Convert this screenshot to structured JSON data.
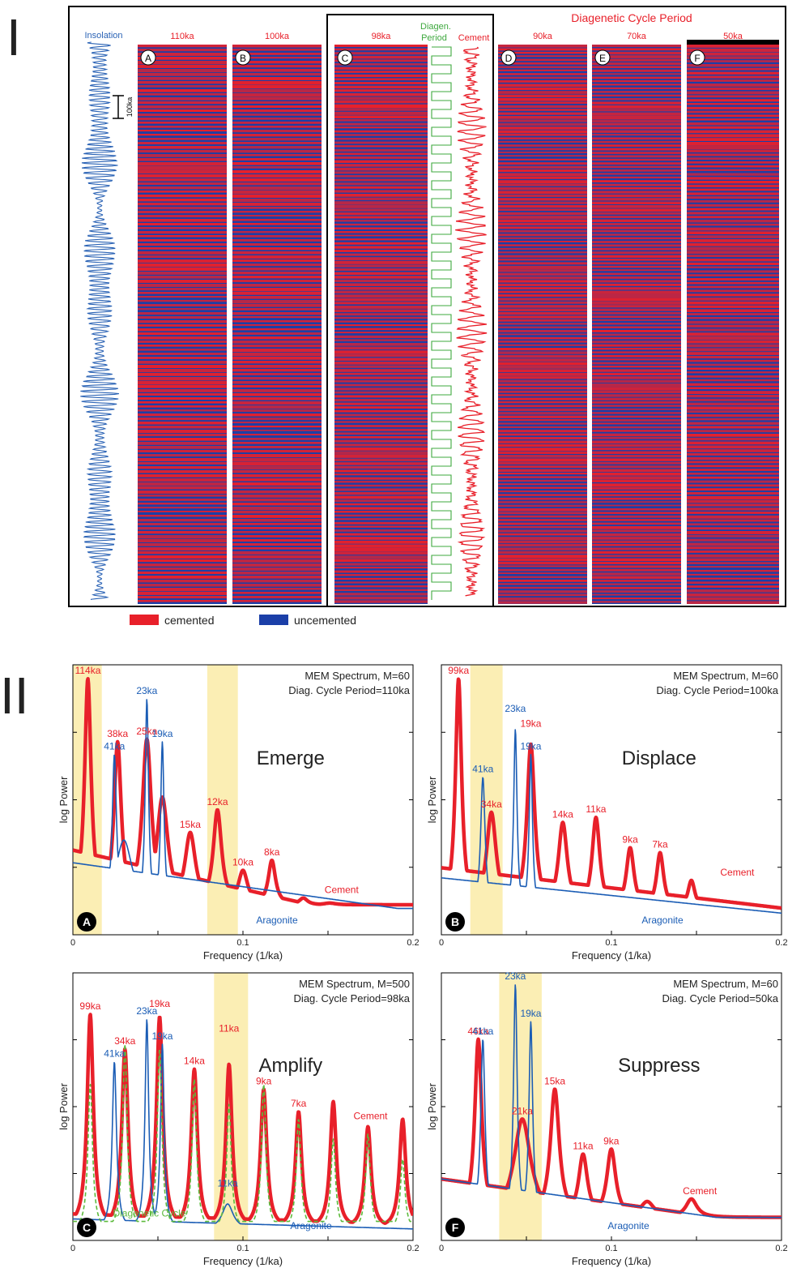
{
  "part_one": {
    "roman": "I",
    "insolation_label": "Insolation",
    "scale_label": "100ka",
    "diagenetic_title": "Diagenetic Cycle Period",
    "diagen_label_1": "Diagen.",
    "diagen_label_2": "Period",
    "cement_label": "Cement",
    "colors": {
      "cemented": "#e8202a",
      "uncemented": "#1b3fa8",
      "insolation": "#2b63b5",
      "diagen": "#3ea83e",
      "title": "#e8202a"
    },
    "columns": [
      {
        "letter": "A",
        "period": "110ka"
      },
      {
        "letter": "B",
        "period": "100ka"
      },
      {
        "letter": "C",
        "period": "98ka"
      },
      {
        "letter": "D",
        "period": "90ka"
      },
      {
        "letter": "E",
        "period": "70ka"
      },
      {
        "letter": "F",
        "period": "50ka"
      }
    ],
    "legend": {
      "cemented": "cemented",
      "uncemented": "uncemented"
    }
  },
  "part_two": {
    "roman": "II"
  },
  "chart_data": [
    {
      "type": "line",
      "panel": "A",
      "title_line1": "MEM Spectrum, M=60",
      "title_line2": "Diag. Cycle Period=110ka",
      "effect": "Emerge",
      "xlabel": "Frequency (1/ka)",
      "ylabel": "log Power",
      "xlim": [
        0,
        0.2
      ],
      "xticks": [
        "0",
        "0.1",
        "0.2"
      ],
      "bands": [
        [
          0.0,
          0.017
        ],
        [
          0.079,
          0.097
        ]
      ],
      "series": [
        {
          "name": "Cement",
          "color": "#e8202a",
          "baseline": 0.31,
          "end": 0.0,
          "peaks": [
            [
              0.0088,
              0.99,
              0.0023
            ],
            [
              0.0263,
              0.74,
              0.0026
            ],
            [
              0.0435,
              0.75,
              0.0033
            ],
            [
              0.0526,
              0.52,
              0.004
            ],
            [
              0.069,
              0.38,
              0.0038
            ],
            [
              0.085,
              0.47,
              0.003
            ],
            [
              0.1,
              0.23,
              0.0034
            ],
            [
              0.117,
              0.27,
              0.0026
            ],
            [
              0.1355,
              0.12,
              0.003
            ],
            [
              0.151,
              0.1,
              0.0045
            ],
            [
              0.172,
              0.08,
              0.006
            ]
          ]
        },
        {
          "name": "Aragonite",
          "color": "#1b5db5",
          "baseline": 0.26,
          "end": 0.07,
          "peaks": [
            [
              0.0244,
              0.69,
              0.0015
            ],
            [
              0.0435,
              0.91,
              0.0012
            ],
            [
              0.0526,
              0.74,
              0.0012
            ],
            [
              0.03,
              0.35,
              0.006
            ]
          ]
        }
      ],
      "labels": [
        {
          "text": "114ka",
          "color": "#e8202a",
          "x": 0.0088,
          "y": 0.99
        },
        {
          "text": "41ka",
          "color": "#1b5db5",
          "x": 0.0244,
          "y": 0.69
        },
        {
          "text": "38ka",
          "color": "#e8202a",
          "x": 0.0263,
          "y": 0.74
        },
        {
          "text": "23ka",
          "color": "#1b5db5",
          "x": 0.0435,
          "y": 0.91
        },
        {
          "text": "25ka",
          "color": "#e8202a",
          "x": 0.0435,
          "y": 0.75
        },
        {
          "text": "19ka",
          "color": "#1b5db5",
          "x": 0.0526,
          "y": 0.74
        },
        {
          "text": "15ka",
          "color": "#e8202a",
          "x": 0.069,
          "y": 0.38
        },
        {
          "text": "12ka",
          "color": "#e8202a",
          "x": 0.085,
          "y": 0.47
        },
        {
          "text": "10ka",
          "color": "#e8202a",
          "x": 0.1,
          "y": 0.23
        },
        {
          "text": "8ka",
          "color": "#e8202a",
          "x": 0.117,
          "y": 0.27
        },
        {
          "text": "Cement",
          "color": "#e8202a",
          "x": 0.158,
          "y": 0.12
        },
        {
          "text": "Aragonite",
          "color": "#1b5db5",
          "x": 0.12,
          "y": 0.0
        }
      ]
    },
    {
      "type": "line",
      "panel": "B",
      "title_line1": "MEM Spectrum, M=60",
      "title_line2": "Diag. Cycle Period=100ka",
      "effect": "Displace",
      "xlabel": "Frequency (1/ka)",
      "ylabel": "log Power",
      "xlim": [
        0,
        0.2
      ],
      "xticks": [
        "0",
        "0.1",
        "0.2"
      ],
      "bands": [
        [
          0.017,
          0.036
        ]
      ],
      "series": [
        {
          "name": "Cement",
          "color": "#e8202a",
          "baseline": 0.24,
          "end": 0.08,
          "peaks": [
            [
              0.0101,
              0.99,
              0.0022
            ],
            [
              0.0294,
              0.46,
              0.0035
            ],
            [
              0.0526,
              0.73,
              0.0028
            ],
            [
              0.0714,
              0.42,
              0.0032
            ],
            [
              0.0909,
              0.44,
              0.0028
            ],
            [
              0.111,
              0.32,
              0.0028
            ],
            [
              0.1286,
              0.3,
              0.0026
            ],
            [
              0.147,
              0.19,
              0.0026
            ],
            [
              0.167,
              0.06,
              0.0035
            ],
            [
              0.192,
              0.08,
              0.0035
            ]
          ]
        },
        {
          "name": "Aragonite",
          "color": "#1b5db5",
          "baseline": 0.2,
          "end": 0.06,
          "peaks": [
            [
              0.0244,
              0.6,
              0.0016
            ],
            [
              0.0435,
              0.79,
              0.0012
            ],
            [
              0.0526,
              0.69,
              0.0012
            ]
          ]
        }
      ],
      "labels": [
        {
          "text": "99ka",
          "color": "#e8202a",
          "x": 0.0101,
          "y": 0.99
        },
        {
          "text": "41ka",
          "color": "#1b5db5",
          "x": 0.0244,
          "y": 0.6
        },
        {
          "text": "34ka",
          "color": "#e8202a",
          "x": 0.0294,
          "y": 0.46
        },
        {
          "text": "23ka",
          "color": "#1b5db5",
          "x": 0.0435,
          "y": 0.84
        },
        {
          "text": "19ka",
          "color": "#e8202a",
          "x": 0.0526,
          "y": 0.78
        },
        {
          "text": "19ka",
          "color": "#1b5db5",
          "x": 0.0526,
          "y": 0.69
        },
        {
          "text": "14ka",
          "color": "#e8202a",
          "x": 0.0714,
          "y": 0.42
        },
        {
          "text": "11ka",
          "color": "#e8202a",
          "x": 0.0909,
          "y": 0.44
        },
        {
          "text": "9ka",
          "color": "#e8202a",
          "x": 0.111,
          "y": 0.32
        },
        {
          "text": "7ka",
          "color": "#e8202a",
          "x": 0.1286,
          "y": 0.3
        },
        {
          "text": "Cement",
          "color": "#e8202a",
          "x": 0.174,
          "y": 0.19
        },
        {
          "text": "Aragonite",
          "color": "#1b5db5",
          "x": 0.13,
          "y": 0.0
        }
      ]
    },
    {
      "type": "line",
      "panel": "C",
      "title_line1": "MEM Spectrum, M=500",
      "title_line2": "Diag. Cycle Period=98ka",
      "effect": "Amplify",
      "xlabel": "Frequency (1/ka)",
      "ylabel": "log Power",
      "xlim": [
        0,
        0.2
      ],
      "xticks": [
        "0",
        "0.1",
        "0.2"
      ],
      "bands": [
        [
          0.083,
          0.103
        ]
      ],
      "series": [
        {
          "name": "Cement",
          "color": "#e8202a",
          "baseline": 0.08,
          "end": 0.04,
          "peaks": [
            [
              0.0102,
              0.88,
              0.0022
            ],
            [
              0.0306,
              0.74,
              0.0022
            ],
            [
              0.051,
              0.87,
              0.0022
            ],
            [
              0.0714,
              0.66,
              0.0022
            ],
            [
              0.0918,
              0.68,
              0.0022
            ],
            [
              0.1122,
              0.58,
              0.0022
            ],
            [
              0.1327,
              0.49,
              0.0022
            ],
            [
              0.1531,
              0.53,
              0.0022
            ],
            [
              0.1735,
              0.43,
              0.0022
            ],
            [
              0.1939,
              0.46,
              0.0022
            ]
          ]
        },
        {
          "name": "Aragonite",
          "color": "#1b5db5",
          "baseline": 0.06,
          "end": 0.02,
          "peaks": [
            [
              0.0244,
              0.69,
              0.0015
            ],
            [
              0.0435,
              0.86,
              0.0013
            ],
            [
              0.0526,
              0.76,
              0.0013
            ],
            [
              0.091,
              0.12,
              0.004
            ]
          ]
        },
        {
          "name": "Diagenetic Cycle",
          "color": "#5cba3c",
          "dashed": true,
          "baseline": 0.05,
          "end": 0.05,
          "peaks": [
            [
              0.0102,
              0.6,
              0.0016
            ],
            [
              0.0306,
              0.76,
              0.0016
            ],
            [
              0.051,
              0.74,
              0.0016
            ],
            [
              0.0714,
              0.62,
              0.0016
            ],
            [
              0.0918,
              0.52,
              0.0016
            ],
            [
              0.1122,
              0.6,
              0.0016
            ],
            [
              0.1327,
              0.46,
              0.0016
            ],
            [
              0.1531,
              0.38,
              0.0016
            ],
            [
              0.1735,
              0.4,
              0.0016
            ],
            [
              0.1939,
              0.3,
              0.0016
            ]
          ]
        }
      ],
      "labels": [
        {
          "text": "99ka",
          "color": "#e8202a",
          "x": 0.0102,
          "y": 0.88
        },
        {
          "text": "41ka",
          "color": "#1b5db5",
          "x": 0.0244,
          "y": 0.69
        },
        {
          "text": "34ka",
          "color": "#e8202a",
          "x": 0.0306,
          "y": 0.74
        },
        {
          "text": "23ka",
          "color": "#1b5db5",
          "x": 0.0435,
          "y": 0.86
        },
        {
          "text": "19ka",
          "color": "#e8202a",
          "x": 0.051,
          "y": 0.89
        },
        {
          "text": "19ka",
          "color": "#1b5db5",
          "x": 0.0526,
          "y": 0.76
        },
        {
          "text": "14ka",
          "color": "#e8202a",
          "x": 0.0714,
          "y": 0.66
        },
        {
          "text": "11ka",
          "color": "#e8202a",
          "x": 0.0918,
          "y": 0.79
        },
        {
          "text": "9ka",
          "color": "#e8202a",
          "x": 0.1122,
          "y": 0.58
        },
        {
          "text": "7ka",
          "color": "#e8202a",
          "x": 0.1327,
          "y": 0.49
        },
        {
          "text": "Cement",
          "color": "#e8202a",
          "x": 0.175,
          "y": 0.44
        },
        {
          "text": "11ka",
          "color": "#1b5db5",
          "x": 0.091,
          "y": 0.17
        },
        {
          "text": "Diagenetic Cycle",
          "color": "#5cba3c",
          "x": 0.045,
          "y": 0.05
        },
        {
          "text": "Aragonite",
          "color": "#1b5db5",
          "x": 0.14,
          "y": 0.0
        }
      ]
    },
    {
      "type": "line",
      "panel": "F",
      "title_line1": "MEM Spectrum, M=60",
      "title_line2": "Diag. Cycle Period=50ka",
      "effect": "Suppress",
      "xlabel": "Frequency (1/ka)",
      "ylabel": "log Power",
      "xlim": [
        0,
        0.2
      ],
      "xticks": [
        "0",
        "0.1",
        "0.2"
      ],
      "bands": [
        [
          0.034,
          0.059
        ]
      ],
      "series": [
        {
          "name": "Cement",
          "color": "#e8202a",
          "baseline": 0.22,
          "end": 0.03,
          "peaks": [
            [
              0.0217,
              0.78,
              0.0025
            ],
            [
              0.0476,
              0.46,
              0.006
            ],
            [
              0.0667,
              0.58,
              0.0032
            ],
            [
              0.0833,
              0.32,
              0.0032
            ],
            [
              0.0999,
              0.34,
              0.0032
            ],
            [
              0.121,
              0.13,
              0.005
            ],
            [
              0.147,
              0.14,
              0.004
            ],
            [
              0.165,
              0.06,
              0.004
            ],
            [
              0.19,
              0.06,
              0.004
            ]
          ]
        },
        {
          "name": "Aragonite",
          "color": "#1b5db5",
          "baseline": 0.22,
          "end": 0.03,
          "peaks": [
            [
              0.0244,
              0.78,
              0.0015
            ],
            [
              0.0435,
              1.0,
              0.0013
            ],
            [
              0.0526,
              0.85,
              0.0013
            ]
          ]
        }
      ],
      "labels": [
        {
          "text": "46ka",
          "color": "#e8202a",
          "x": 0.0217,
          "y": 0.78
        },
        {
          "text": "41ka",
          "color": "#1b5db5",
          "x": 0.0244,
          "y": 0.78
        },
        {
          "text": "23ka",
          "color": "#1b5db5",
          "x": 0.0435,
          "y": 1.0
        },
        {
          "text": "19ka",
          "color": "#1b5db5",
          "x": 0.0526,
          "y": 0.85
        },
        {
          "text": "21ka",
          "color": "#e8202a",
          "x": 0.0476,
          "y": 0.46
        },
        {
          "text": "15ka",
          "color": "#e8202a",
          "x": 0.0667,
          "y": 0.58
        },
        {
          "text": "11ka",
          "color": "#e8202a",
          "x": 0.0833,
          "y": 0.32
        },
        {
          "text": "9ka",
          "color": "#e8202a",
          "x": 0.0999,
          "y": 0.34
        },
        {
          "text": "Cement",
          "color": "#e8202a",
          "x": 0.152,
          "y": 0.14
        },
        {
          "text": "Aragonite",
          "color": "#1b5db5",
          "x": 0.11,
          "y": 0.0
        }
      ]
    }
  ]
}
